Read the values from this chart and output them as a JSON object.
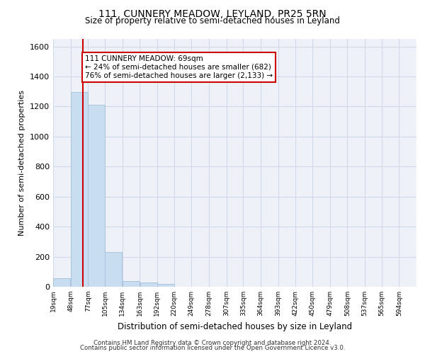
{
  "title_line1": "111, CUNNERY MEADOW, LEYLAND, PR25 5RN",
  "title_line2": "Size of property relative to semi-detached houses in Leyland",
  "xlabel": "Distribution of semi-detached houses by size in Leyland",
  "ylabel": "Number of semi-detached properties",
  "footer_line1": "Contains HM Land Registry data © Crown copyright and database right 2024.",
  "footer_line2": "Contains public sector information licensed under the Open Government Licence v3.0.",
  "annotation_title": "111 CUNNERY MEADOW: 69sqm",
  "annotation_line1": "← 24% of semi-detached houses are smaller (682)",
  "annotation_line2": "76% of semi-detached houses are larger (2,133) →",
  "property_size_sqm": 69,
  "bar_left_edges": [
    19,
    48,
    77,
    105,
    134,
    163,
    192,
    220,
    249,
    278,
    307,
    335,
    364,
    393,
    422,
    450,
    479,
    508,
    537,
    565
  ],
  "bar_widths": [
    29,
    29,
    28,
    29,
    29,
    29,
    28,
    29,
    29,
    29,
    28,
    29,
    29,
    29,
    28,
    29,
    29,
    29,
    28,
    29
  ],
  "bar_heights": [
    55,
    1295,
    1210,
    230,
    40,
    30,
    20,
    0,
    0,
    0,
    0,
    0,
    0,
    0,
    0,
    0,
    0,
    0,
    0,
    0
  ],
  "tick_labels": [
    "19sqm",
    "48sqm",
    "77sqm",
    "105sqm",
    "134sqm",
    "163sqm",
    "192sqm",
    "220sqm",
    "249sqm",
    "278sqm",
    "307sqm",
    "335sqm",
    "364sqm",
    "393sqm",
    "422sqm",
    "450sqm",
    "479sqm",
    "508sqm",
    "537sqm",
    "565sqm",
    "594sqm"
  ],
  "bar_color": "#c9ddf0",
  "bar_edge_color": "#a8c4dc",
  "grid_color": "#d0d8e8",
  "annotation_box_color": "#cc0000",
  "vline_color": "#cc0000",
  "ylim": [
    0,
    1650
  ],
  "yticks": [
    0,
    200,
    400,
    600,
    800,
    1000,
    1200,
    1400,
    1600
  ],
  "bg_color": "#eef2f8",
  "fig_bg_color": "#ffffff",
  "xlim_min": 19,
  "xlim_max": 623
}
